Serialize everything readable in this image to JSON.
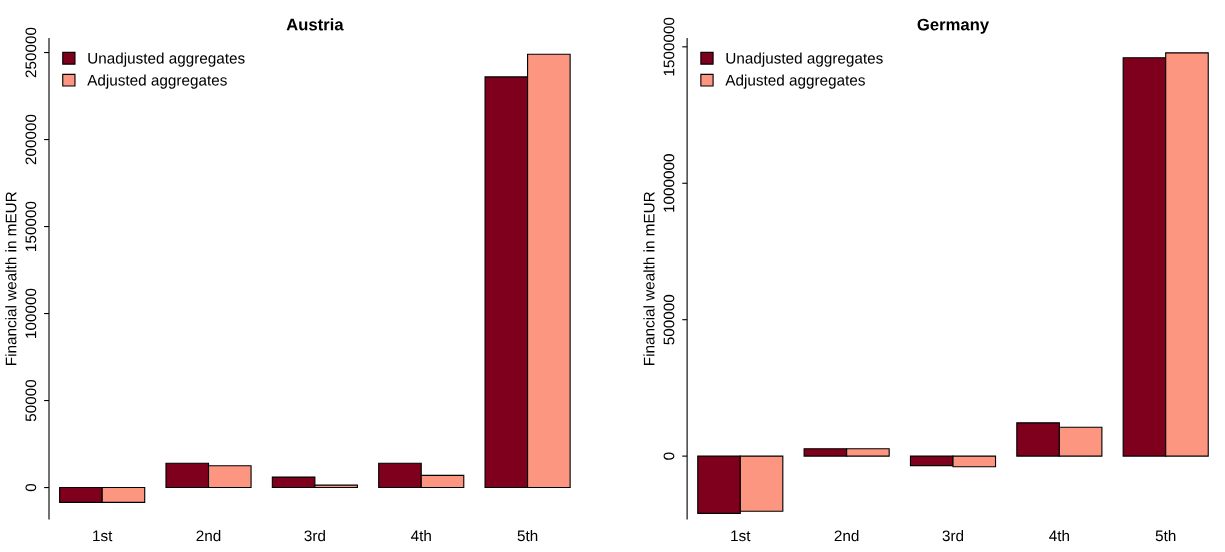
{
  "chart_data": [
    {
      "type": "bar",
      "title": "Austria",
      "ylabel": "Financial wealth in mEUR",
      "categories": [
        "1st",
        "2nd",
        "3rd",
        "4th",
        "5th"
      ],
      "series": [
        {
          "name": "Unadjusted aggregates",
          "color": "#7f001c",
          "values": [
            -8500,
            14000,
            6000,
            14000,
            236000
          ]
        },
        {
          "name": "Adjusted aggregates",
          "color": "#fc9680",
          "values": [
            -8500,
            12500,
            1400,
            7000,
            249000
          ]
        }
      ],
      "ylim": [
        -18000,
        258000
      ],
      "yticks": [
        0,
        50000,
        100000,
        150000,
        200000,
        250000
      ],
      "legend": "top left",
      "grid": false
    },
    {
      "type": "bar",
      "title": "Germany",
      "ylabel": "Financial wealth in mEUR",
      "categories": [
        "1st",
        "2nd",
        "3rd",
        "4th",
        "5th"
      ],
      "series": [
        {
          "name": "Unadjusted aggregates",
          "color": "#7f001c",
          "values": [
            -210000,
            27000,
            -35000,
            122000,
            1460000
          ]
        },
        {
          "name": "Adjusted aggregates",
          "color": "#fc9680",
          "values": [
            -202000,
            27000,
            -39000,
            106000,
            1478000
          ]
        }
      ],
      "ylim": [
        -230000,
        1530000
      ],
      "yticks": [
        0,
        500000,
        1000000,
        1500000
      ],
      "legend": "top left",
      "grid": false
    }
  ]
}
